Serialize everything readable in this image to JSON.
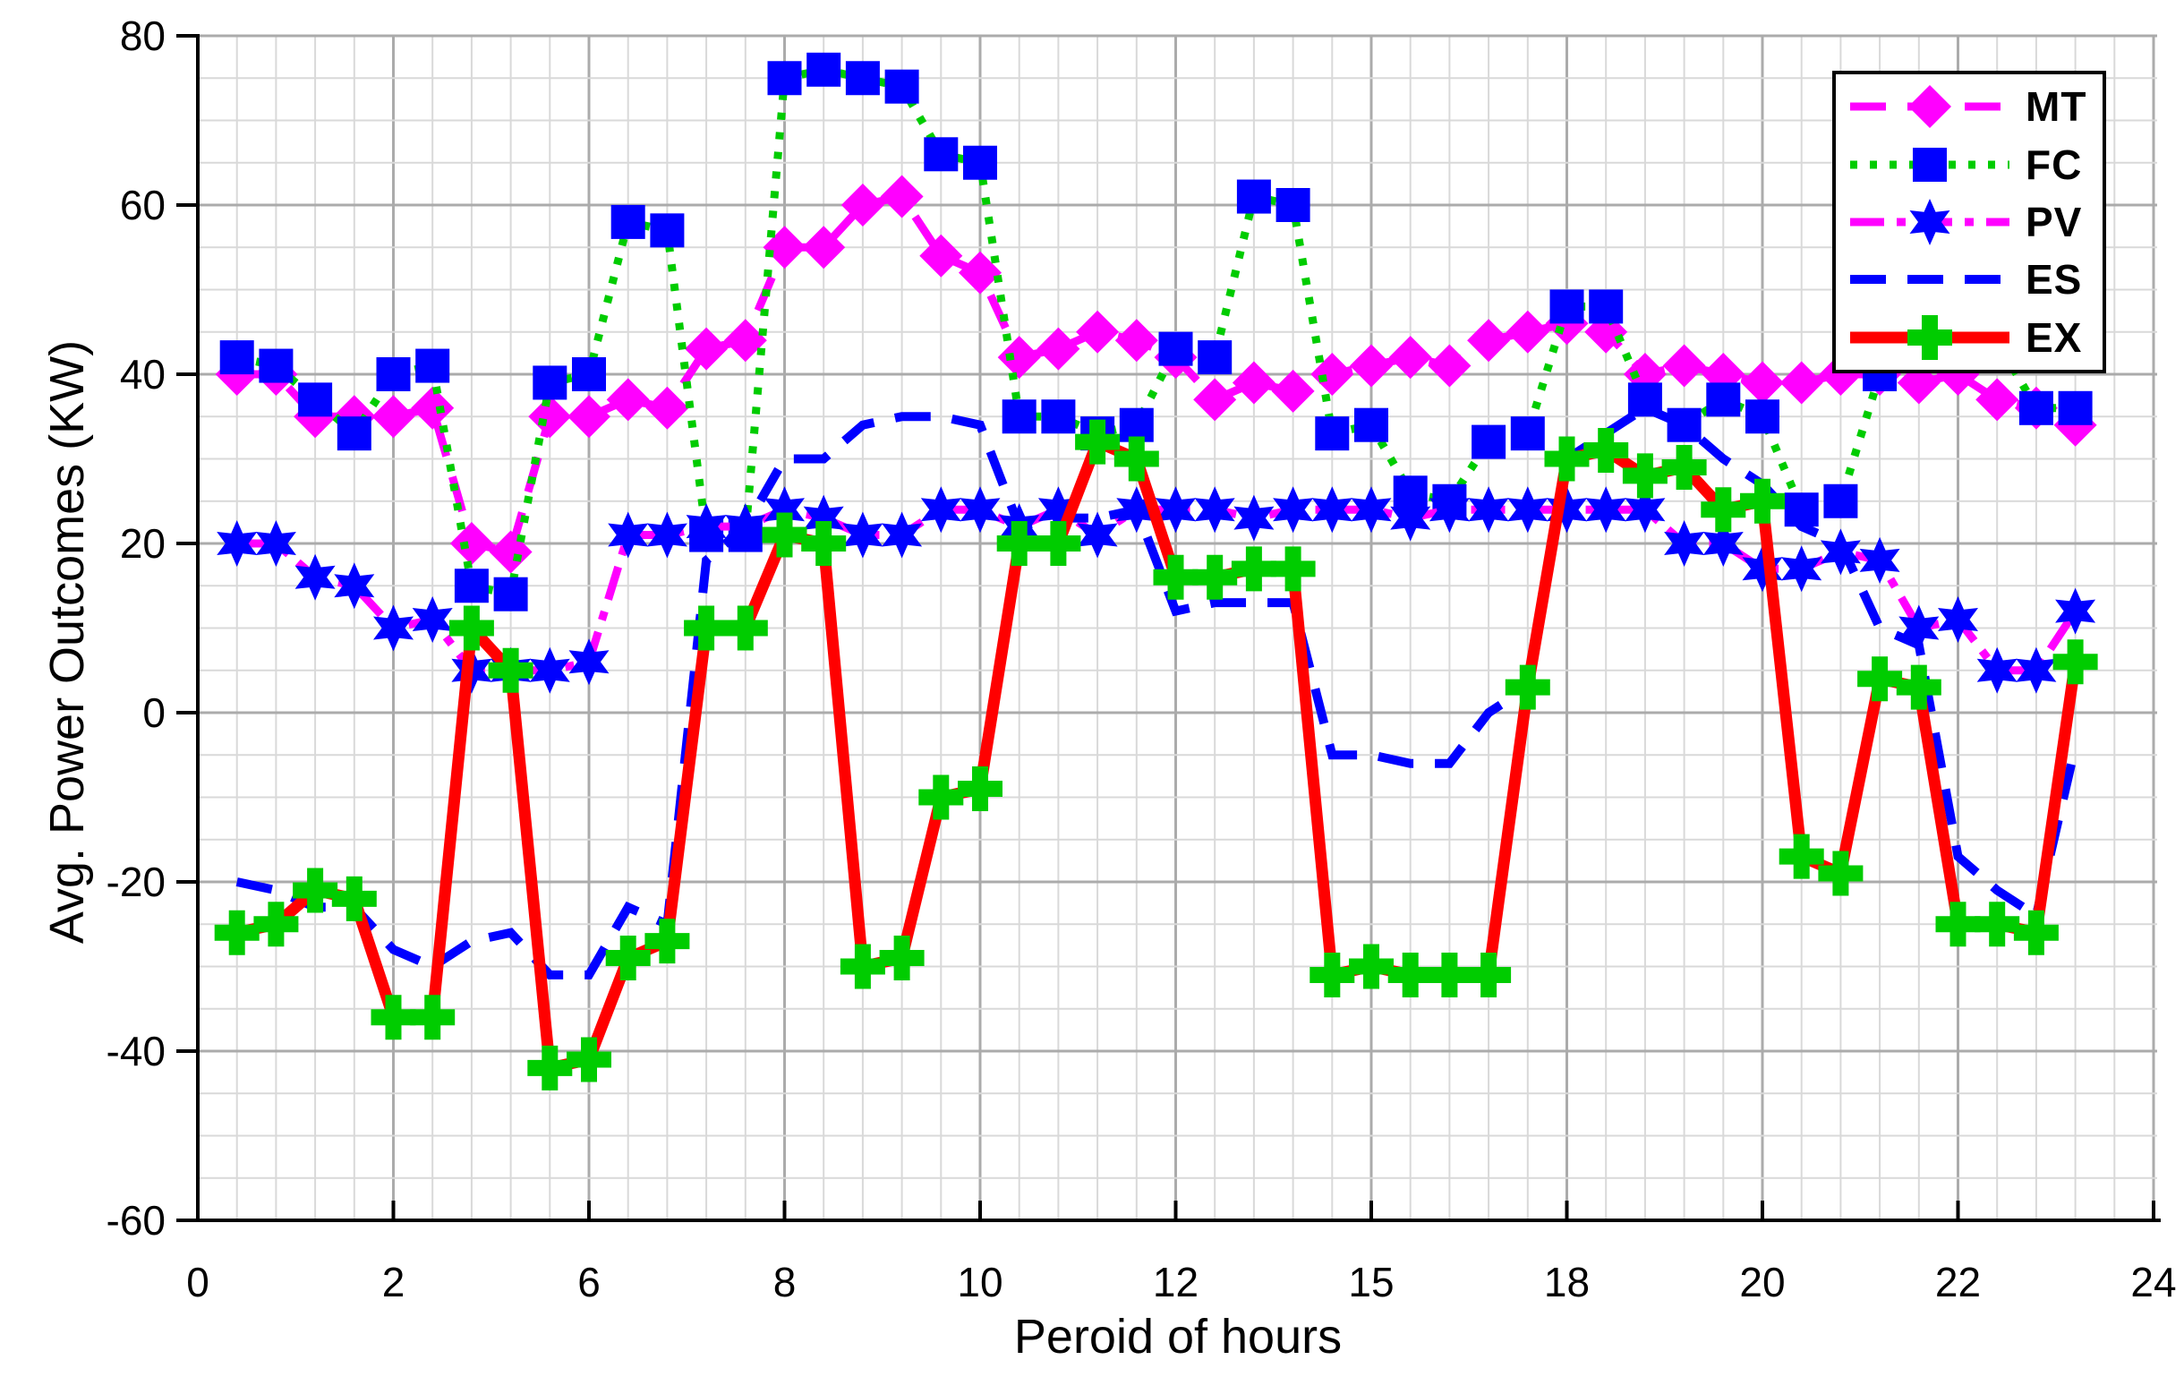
{
  "chart_data": {
    "type": "line",
    "title": "",
    "xlabel": "Peroid of hours",
    "ylabel": "Avg. Power Outcomes (KW)",
    "ylim": [
      -60,
      80
    ],
    "y_ticks": [
      80,
      60,
      40,
      20,
      0,
      -20,
      -40,
      -60
    ],
    "x_tick_labels": [
      "0",
      "2",
      "6",
      "8",
      "10",
      "12",
      "15",
      "18",
      "20",
      "22",
      "24"
    ],
    "grid": "on",
    "minor_grid": "on",
    "points_per_major_x_interval": 5,
    "legend_position": "top-right",
    "x_index": [
      1,
      2,
      3,
      4,
      5,
      6,
      7,
      8,
      9,
      10,
      11,
      12,
      13,
      14,
      15,
      16,
      17,
      18,
      19,
      20,
      21,
      22,
      23,
      24,
      25,
      26,
      27,
      28,
      29,
      30,
      31,
      32,
      33,
      34,
      35,
      36,
      37,
      38,
      39,
      40,
      41,
      42,
      43,
      44,
      45,
      46,
      47,
      48
    ],
    "series": [
      {
        "name": "MT",
        "color": "#FF00FF",
        "line_style": "dashed",
        "marker": "diamond",
        "marker_color": "#FF00FF",
        "values": [
          40,
          40,
          35,
          35,
          35,
          36,
          20,
          19,
          35,
          35,
          37,
          36,
          43,
          44,
          55,
          55,
          60,
          61,
          54,
          52,
          42,
          43,
          45,
          44,
          42,
          37,
          39,
          38,
          40,
          41,
          42,
          41,
          44,
          45,
          46,
          45,
          40,
          41,
          40,
          39,
          39,
          40,
          40,
          39,
          40,
          37,
          36,
          34
        ]
      },
      {
        "name": "FC",
        "color": "#00CC00",
        "line_style": "dotted",
        "marker": "square",
        "marker_color": "#0000FF",
        "values": [
          42,
          41,
          37,
          33,
          40,
          41,
          15,
          14,
          39,
          40,
          58,
          57,
          21,
          21,
          75,
          76,
          75,
          74,
          66,
          65,
          35,
          35,
          33,
          34,
          43,
          42,
          61,
          60,
          33,
          34,
          26,
          25,
          32,
          33,
          48,
          48,
          37,
          34,
          37,
          35,
          24,
          25,
          40,
          46,
          48,
          44,
          36,
          36
        ]
      },
      {
        "name": "PV",
        "color": "#FF00FF",
        "line_style": "dash-dot",
        "marker": "hexagram",
        "marker_color": "#0000FF",
        "values": [
          20,
          20,
          16,
          15,
          10,
          11,
          5,
          5,
          5,
          6,
          21,
          21,
          22,
          22,
          24,
          23,
          21,
          21,
          24,
          24,
          22,
          24,
          21,
          24,
          24,
          24,
          23,
          24,
          24,
          24,
          23,
          24,
          24,
          24,
          24,
          24,
          24,
          20,
          20,
          17,
          17,
          19,
          18,
          10,
          11,
          5,
          5,
          12
        ]
      },
      {
        "name": "ES",
        "color": "#0000FF",
        "line_style": "dashed",
        "marker": "none",
        "marker_color": "#0000FF",
        "values": [
          -20,
          -21,
          -23,
          -23,
          -28,
          -30,
          -27,
          -26,
          -31,
          -31,
          -23,
          -25,
          18,
          22,
          30,
          30,
          34,
          35,
          35,
          34,
          22,
          23,
          23,
          24,
          12,
          13,
          13,
          13,
          -5,
          -5,
          -6,
          -6,
          0,
          3,
          30,
          33,
          36,
          34,
          30,
          27,
          22,
          20,
          10,
          8,
          -17,
          -21,
          -24,
          -4
        ]
      },
      {
        "name": "EX",
        "color": "#FF0000",
        "line_style": "solid",
        "marker": "plus",
        "marker_color": "#00CC00",
        "values": [
          -26,
          -25,
          -21,
          -22,
          -36,
          -36,
          10,
          5,
          -42,
          -41,
          -29,
          -27,
          10,
          10,
          21,
          20,
          -30,
          -29,
          -10,
          -9,
          20,
          20,
          32,
          30,
          16,
          16,
          17,
          17,
          -31,
          -30,
          -31,
          -31,
          -31,
          3,
          30,
          31,
          28,
          29,
          24,
          25,
          -17,
          -19,
          4,
          3,
          -25,
          -25,
          -26,
          6
        ]
      }
    ]
  }
}
